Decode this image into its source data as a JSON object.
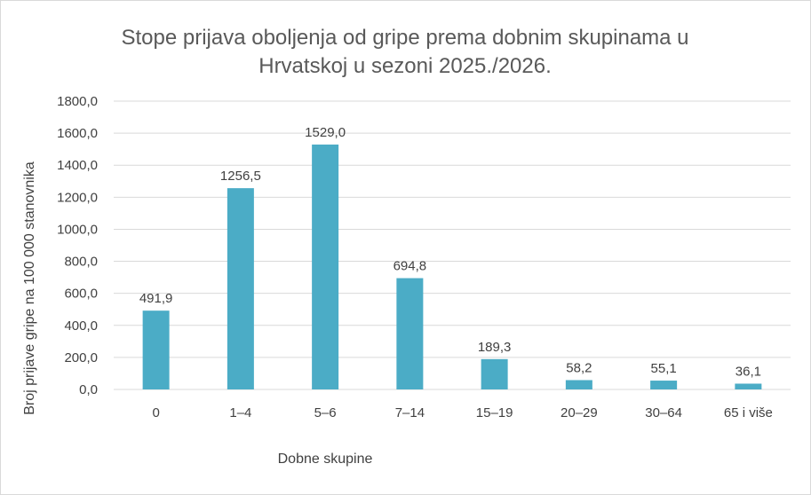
{
  "chart_data": {
    "type": "bar",
    "title": "Stope prijava oboljenja od gripe prema dobnim skupinama u Hrvatskoj u sezoni 2025./2026.",
    "title_lines": [
      "Stope prijava oboljenja od gripe prema dobnim skupinama u",
      "Hrvatskoj u sezoni 2025./2026."
    ],
    "xlabel": "Dobne skupine",
    "ylabel": "Broj prijave gripe na 100 000 stanovnika",
    "categories": [
      "0",
      "1–4",
      "5–6",
      "7–14",
      "15–19",
      "20–29",
      "30–64",
      "65 i više"
    ],
    "values": [
      491.9,
      1256.5,
      1529.0,
      694.8,
      189.3,
      58.2,
      55.1,
      36.1
    ],
    "data_labels": [
      "491,9",
      "1256,5",
      "1529,0",
      "694,8",
      "189,3",
      "58,2",
      "55,1",
      "36,1"
    ],
    "ylim": [
      0,
      1800
    ],
    "yticks": [
      0,
      200,
      400,
      600,
      800,
      1000,
      1200,
      1400,
      1600,
      1800
    ],
    "ytick_labels": [
      "0,0",
      "200,0",
      "400,0",
      "600,0",
      "800,0",
      "1000,0",
      "1200,0",
      "1400,0",
      "1600,0",
      "1800,0"
    ],
    "grid": true,
    "legend": "none",
    "bar_color": "#4BACC6"
  }
}
